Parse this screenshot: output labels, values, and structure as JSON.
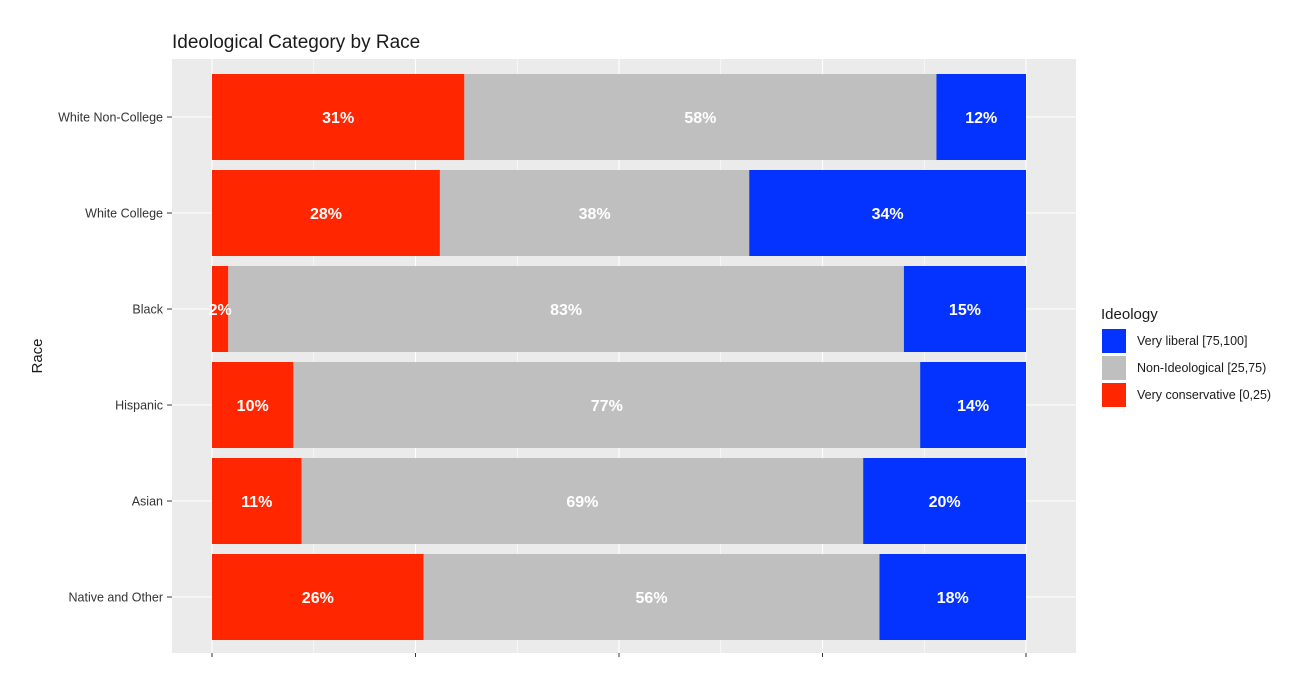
{
  "chart_data": {
    "type": "bar",
    "orientation": "horizontal",
    "stacked": true,
    "title": "Ideological Category by Race",
    "xlabel": "",
    "ylabel": "Race",
    "categories": [
      "White Non-College",
      "White College",
      "Black",
      "Hispanic",
      "Asian",
      "Native and Other"
    ],
    "series": [
      {
        "name": "Very conservative [0,25)",
        "color": "#ff2600",
        "values": [
          31,
          28,
          2,
          10,
          11,
          26
        ],
        "labels": [
          "31%",
          "28%",
          "2%",
          "10%",
          "11%",
          "26%"
        ]
      },
      {
        "name": "Non-Ideological [25,75)",
        "color": "#bfbfbf",
        "values": [
          58,
          38,
          83,
          77,
          69,
          56
        ],
        "labels": [
          "58%",
          "38%",
          "83%",
          "77%",
          "69%",
          "56%"
        ]
      },
      {
        "name": "Very liberal [75,100]",
        "color": "#0433ff",
        "values": [
          12,
          34,
          15,
          14,
          20,
          18
        ],
        "labels": [
          "12%",
          "34%",
          "15%",
          "14%",
          "20%",
          "18%"
        ]
      }
    ],
    "xlim": [
      0,
      100
    ],
    "grid": true,
    "panel_background": "#ebebeb",
    "legend": {
      "title": "Ideology",
      "position": "right",
      "order": [
        "Very liberal [75,100]",
        "Non-Ideological [25,75)",
        "Very conservative [0,25)"
      ]
    }
  }
}
